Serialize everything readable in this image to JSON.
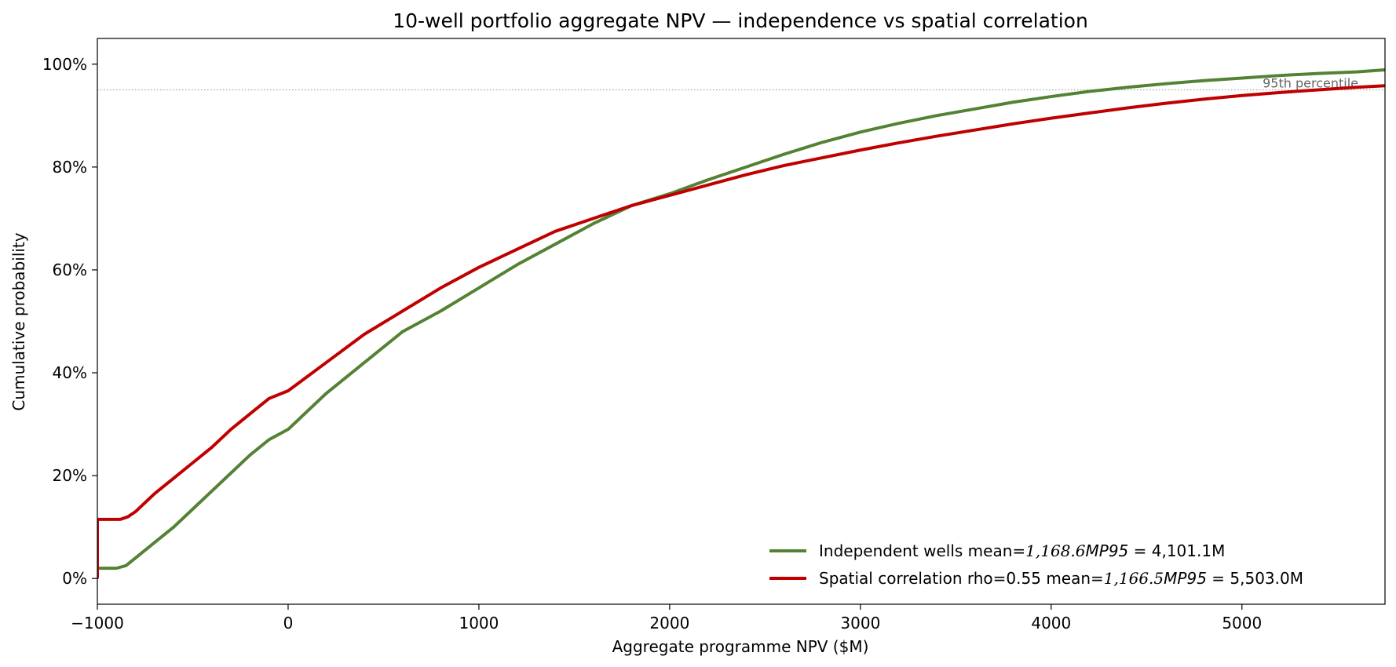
{
  "chart_data": {
    "type": "line",
    "title": "10-well portfolio aggregate NPV — independence vs spatial correlation",
    "xlabel": "Aggregate programme NPV  ($M)",
    "ylabel": "Cumulative probability",
    "xlim": [
      -1000,
      5750
    ],
    "ylim": [
      -0.05,
      1.05
    ],
    "xticks": [
      -1000,
      0,
      1000,
      2000,
      3000,
      4000,
      5000
    ],
    "xtick_labels": [
      "−1000",
      "0",
      "1000",
      "2000",
      "3000",
      "4000",
      "5000"
    ],
    "yticks": [
      0,
      0.2,
      0.4,
      0.6,
      0.8,
      1.0
    ],
    "ytick_labels": [
      "0%",
      "20%",
      "40%",
      "60%",
      "80%",
      "100%"
    ],
    "grid": false,
    "legend_position": "lower-right",
    "reference_line": {
      "y": 0.95,
      "label": "95th percentile",
      "color": "#999999"
    },
    "series": [
      {
        "name": "Independent wells   mean=$1,168.6M  P95=$4,101.1M",
        "legend_parts": [
          "Independent wells   mean=",
          "1,168.6",
          "MP",
          "95",
          " = 4,101.1M"
        ],
        "color": "#548235",
        "x": [
          -1000,
          -1000,
          -900,
          -850,
          -800,
          -700,
          -600,
          -500,
          -400,
          -300,
          -200,
          -100,
          0,
          200,
          400,
          600,
          800,
          1000,
          1200,
          1400,
          1600,
          1800,
          2000,
          2200,
          2400,
          2600,
          2800,
          3000,
          3200,
          3400,
          3600,
          3800,
          4000,
          4200,
          4400,
          4600,
          4800,
          5000,
          5200,
          5400,
          5600,
          5750
        ],
        "y": [
          0.0,
          0.02,
          0.02,
          0.025,
          0.04,
          0.07,
          0.1,
          0.135,
          0.17,
          0.205,
          0.24,
          0.27,
          0.29,
          0.36,
          0.42,
          0.48,
          0.52,
          0.565,
          0.61,
          0.65,
          0.69,
          0.725,
          0.748,
          0.775,
          0.8,
          0.825,
          0.848,
          0.868,
          0.885,
          0.9,
          0.913,
          0.926,
          0.937,
          0.947,
          0.955,
          0.962,
          0.968,
          0.973,
          0.978,
          0.982,
          0.985,
          0.989
        ]
      },
      {
        "name": "Spatial correlation rho=0.55   mean=$1,166.5M  P95=$5,503.0M",
        "legend_parts": [
          "Spatial correlation rho=0.55   mean=",
          "1,166.5",
          "MP",
          "95",
          " = 5,503.0M"
        ],
        "color": "#c00000",
        "x": [
          -1000,
          -1000,
          -880,
          -840,
          -800,
          -700,
          -600,
          -500,
          -400,
          -300,
          -200,
          -100,
          0,
          200,
          400,
          600,
          800,
          1000,
          1200,
          1400,
          1600,
          1800,
          2000,
          2200,
          2400,
          2600,
          2800,
          3000,
          3200,
          3400,
          3600,
          3800,
          4000,
          4200,
          4400,
          4600,
          4800,
          5000,
          5200,
          5400,
          5600,
          5750
        ],
        "y": [
          0.0,
          0.115,
          0.115,
          0.12,
          0.13,
          0.165,
          0.195,
          0.225,
          0.255,
          0.29,
          0.32,
          0.35,
          0.365,
          0.42,
          0.475,
          0.52,
          0.565,
          0.605,
          0.64,
          0.675,
          0.7,
          0.725,
          0.745,
          0.765,
          0.785,
          0.803,
          0.818,
          0.833,
          0.847,
          0.86,
          0.872,
          0.884,
          0.895,
          0.905,
          0.915,
          0.924,
          0.932,
          0.939,
          0.945,
          0.95,
          0.955,
          0.958
        ]
      }
    ]
  }
}
